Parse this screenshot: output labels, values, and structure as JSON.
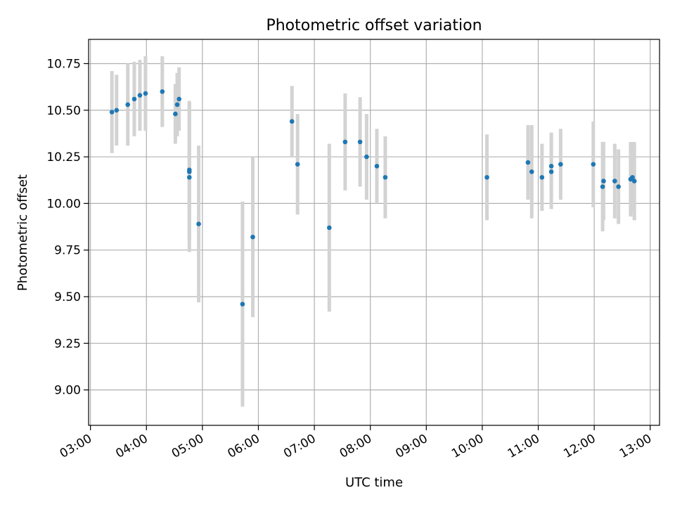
{
  "chart_data": {
    "type": "scatter",
    "title": "Photometric offset variation",
    "xlabel": "UTC time",
    "ylabel": "Photometric offset",
    "xlim": [
      "02:58",
      "13:10"
    ],
    "ylim": [
      8.81,
      10.88
    ],
    "x_ticks": [
      "03:00",
      "04:00",
      "05:00",
      "06:00",
      "07:00",
      "08:00",
      "09:00",
      "10:00",
      "11:00",
      "12:00",
      "13:00"
    ],
    "y_ticks": [
      "9.00",
      "9.25",
      "9.50",
      "9.75",
      "10.00",
      "10.25",
      "10.50",
      "10.75"
    ],
    "grid": true,
    "marker_color": "#1f77b4",
    "errorbar_color": "#d3d3d3",
    "series": [
      {
        "points": [
          {
            "time": "03:23",
            "y": 10.49,
            "err": 0.22
          },
          {
            "time": "03:28",
            "y": 10.5,
            "err": 0.19
          },
          {
            "time": "03:40",
            "y": 10.53,
            "err": 0.22
          },
          {
            "time": "03:47",
            "y": 10.56,
            "err": 0.2
          },
          {
            "time": "03:53",
            "y": 10.58,
            "err": 0.19
          },
          {
            "time": "03:59",
            "y": 10.59,
            "err": 0.2
          },
          {
            "time": "04:17",
            "y": 10.6,
            "err": 0.19
          },
          {
            "time": "04:31",
            "y": 10.48,
            "err": 0.16
          },
          {
            "time": "04:33",
            "y": 10.53,
            "err": 0.17
          },
          {
            "time": "04:35",
            "y": 10.56,
            "err": 0.17
          },
          {
            "time": "04:46",
            "y": 10.18,
            "err": 0.37
          },
          {
            "time": "04:46",
            "y": 10.17,
            "err": 0.36
          },
          {
            "time": "04:46",
            "y": 10.14,
            "err": 0.4
          },
          {
            "time": "04:56",
            "y": 9.89,
            "err": 0.42
          },
          {
            "time": "05:43",
            "y": 9.46,
            "err": 0.55
          },
          {
            "time": "05:54",
            "y": 9.82,
            "err": 0.43
          },
          {
            "time": "06:36",
            "y": 10.44,
            "err": 0.19
          },
          {
            "time": "06:42",
            "y": 10.21,
            "err": 0.27
          },
          {
            "time": "07:16",
            "y": 9.87,
            "err": 0.45
          },
          {
            "time": "07:33",
            "y": 10.33,
            "err": 0.26
          },
          {
            "time": "07:49",
            "y": 10.33,
            "err": 0.24
          },
          {
            "time": "07:56",
            "y": 10.25,
            "err": 0.23
          },
          {
            "time": "08:07",
            "y": 10.2,
            "err": 0.2
          },
          {
            "time": "08:16",
            "y": 10.14,
            "err": 0.22
          },
          {
            "time": "10:05",
            "y": 10.14,
            "err": 0.23
          },
          {
            "time": "10:49",
            "y": 10.22,
            "err": 0.2
          },
          {
            "time": "10:53",
            "y": 10.17,
            "err": 0.25
          },
          {
            "time": "11:04",
            "y": 10.14,
            "err": 0.18
          },
          {
            "time": "11:14",
            "y": 10.2,
            "err": 0.18
          },
          {
            "time": "11:14",
            "y": 10.17,
            "err": 0.2
          },
          {
            "time": "11:24",
            "y": 10.21,
            "err": 0.19
          },
          {
            "time": "11:59",
            "y": 10.21,
            "err": 0.23
          },
          {
            "time": "12:09",
            "y": 10.09,
            "err": 0.24
          },
          {
            "time": "12:10",
            "y": 10.12,
            "err": 0.21
          },
          {
            "time": "12:22",
            "y": 10.12,
            "err": 0.2
          },
          {
            "time": "12:26",
            "y": 10.09,
            "err": 0.2
          },
          {
            "time": "12:39",
            "y": 10.13,
            "err": 0.2
          },
          {
            "time": "12:41",
            "y": 10.14,
            "err": 0.19
          },
          {
            "time": "12:43",
            "y": 10.12,
            "err": 0.21
          }
        ]
      }
    ]
  }
}
